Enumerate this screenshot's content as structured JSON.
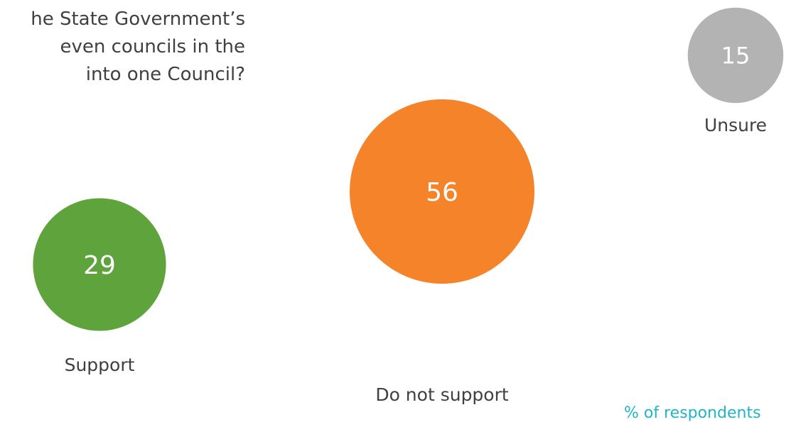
{
  "question": {
    "lines": [
      "he State Government’s",
      "even councils in the",
      " into one Council?"
    ]
  },
  "footnote": "% of respondents",
  "chart_data": {
    "type": "bubble",
    "unit": "%",
    "categories": [
      "Support",
      "Do not support",
      "Unsure"
    ],
    "values": [
      29,
      56,
      15
    ],
    "colors": [
      "#5ea33b",
      "#f5832a",
      "#b3b3b3"
    ]
  }
}
